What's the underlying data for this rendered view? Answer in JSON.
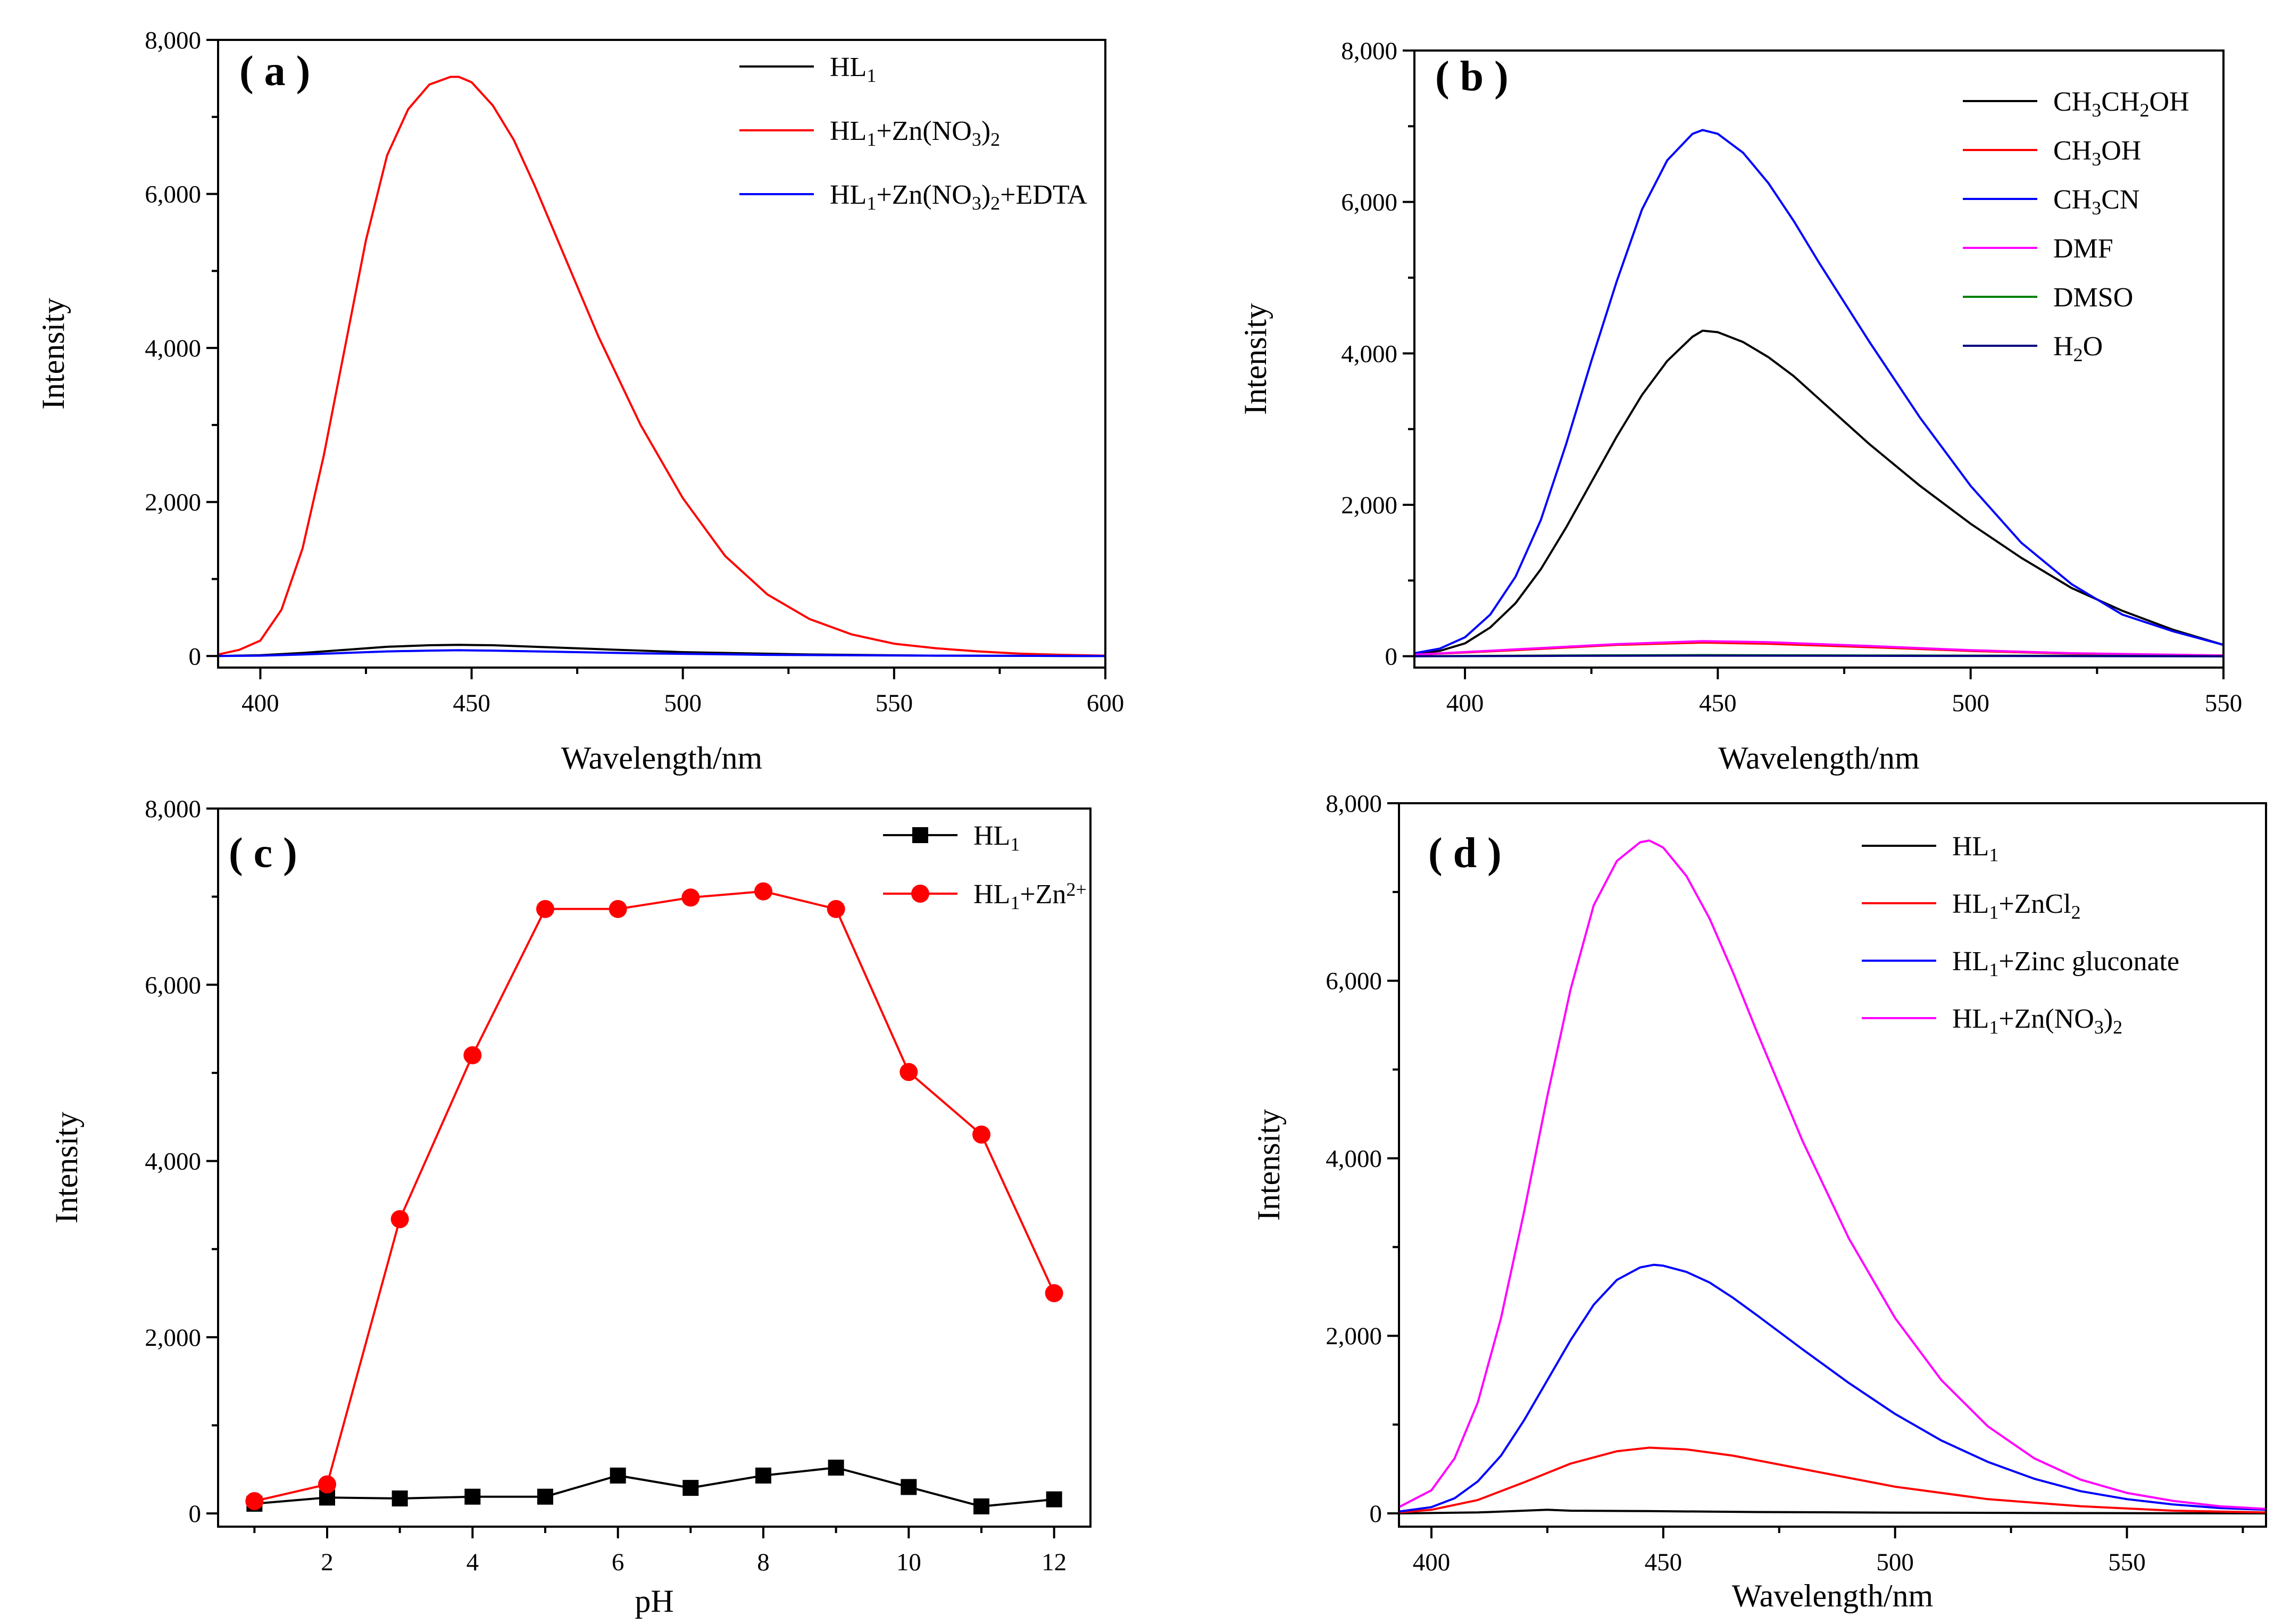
{
  "chart_data": [
    {
      "id": "a",
      "type": "line",
      "panel_label": "( a )",
      "xlabel": "Wavelength/nm",
      "ylabel": "Intensity",
      "xlim": [
        390,
        600
      ],
      "ylim": [
        -150,
        8000
      ],
      "xticks": [
        400,
        450,
        500,
        550,
        600
      ],
      "xtick_labels": [
        "400",
        "450",
        "500",
        "550",
        "600"
      ],
      "yticks": [
        0,
        2000,
        4000,
        6000,
        8000
      ],
      "ytick_labels": [
        "0",
        "2,000",
        "4,000",
        "6,000",
        "8,000"
      ],
      "legend_position": "top-right",
      "series": [
        {
          "name": "HL1",
          "legend": [
            [
              "HL",
              ""
            ],
            [
              "1",
              "sub"
            ]
          ],
          "color": "#000000",
          "x": [
            390,
            400,
            410,
            420,
            430,
            440,
            447,
            455,
            465,
            480,
            500,
            530,
            560,
            600
          ],
          "y": [
            0,
            10,
            40,
            80,
            120,
            140,
            145,
            140,
            120,
            90,
            50,
            20,
            5,
            0
          ]
        },
        {
          "name": "HL1+Zn(NO3)2",
          "legend": [
            [
              "HL",
              ""
            ],
            [
              "1",
              "sub"
            ],
            [
              "+Zn(NO",
              ""
            ],
            [
              "3",
              "sub"
            ],
            [
              ")",
              ""
            ],
            [
              "2",
              "sub"
            ]
          ],
          "color": "#ff0000",
          "x": [
            390,
            395,
            400,
            405,
            410,
            415,
            420,
            425,
            430,
            435,
            440,
            445,
            447,
            450,
            455,
            460,
            465,
            470,
            480,
            490,
            500,
            510,
            520,
            530,
            540,
            550,
            560,
            570,
            580,
            590,
            600
          ],
          "y": [
            20,
            80,
            200,
            600,
            1400,
            2600,
            4000,
            5400,
            6500,
            7100,
            7420,
            7520,
            7520,
            7450,
            7150,
            6700,
            6100,
            5450,
            4150,
            3000,
            2050,
            1300,
            800,
            480,
            280,
            160,
            100,
            60,
            30,
            15,
            5
          ]
        },
        {
          "name": "HL1+Zn(NO3)2+EDTA",
          "legend": [
            [
              "HL",
              ""
            ],
            [
              "1",
              "sub"
            ],
            [
              "+Zn(NO",
              ""
            ],
            [
              "3",
              "sub"
            ],
            [
              ")",
              ""
            ],
            [
              "2",
              "sub"
            ],
            [
              "+EDTA",
              ""
            ]
          ],
          "color": "#0000ff",
          "x": [
            390,
            400,
            410,
            420,
            430,
            440,
            447,
            455,
            470,
            490,
            520,
            560,
            600
          ],
          "y": [
            0,
            5,
            20,
            40,
            60,
            70,
            75,
            70,
            55,
            35,
            15,
            5,
            0
          ]
        }
      ]
    },
    {
      "id": "b",
      "type": "line",
      "panel_label": "( b )",
      "xlabel": "Wavelength/nm",
      "ylabel": "Intensity",
      "xlim": [
        390,
        550
      ],
      "ylim": [
        -150,
        8000
      ],
      "xticks": [
        400,
        450,
        500,
        550
      ],
      "xtick_labels": [
        "400",
        "450",
        "500",
        "550"
      ],
      "yticks": [
        0,
        2000,
        4000,
        6000,
        8000
      ],
      "ytick_labels": [
        "0",
        "2,000",
        "4,000",
        "6,000",
        "8,000"
      ],
      "legend_position": "top-right",
      "series": [
        {
          "name": "CH3CH2OH",
          "legend": [
            [
              "CH",
              ""
            ],
            [
              "3",
              "sub"
            ],
            [
              "CH",
              ""
            ],
            [
              "2",
              "sub"
            ],
            [
              "OH",
              ""
            ]
          ],
          "color": "#000000",
          "x": [
            390,
            395,
            400,
            405,
            410,
            415,
            420,
            425,
            430,
            435,
            440,
            445,
            447,
            450,
            455,
            460,
            465,
            470,
            480,
            490,
            500,
            510,
            520,
            530,
            540,
            550
          ],
          "y": [
            30,
            70,
            170,
            380,
            700,
            1150,
            1700,
            2300,
            2900,
            3450,
            3900,
            4220,
            4300,
            4280,
            4150,
            3950,
            3700,
            3400,
            2800,
            2250,
            1750,
            1300,
            900,
            600,
            350,
            150
          ]
        },
        {
          "name": "CH3OH",
          "legend": [
            [
              "CH",
              ""
            ],
            [
              "3",
              "sub"
            ],
            [
              "OH",
              ""
            ]
          ],
          "color": "#ff0000",
          "x": [
            390,
            410,
            430,
            447,
            460,
            480,
            500,
            520,
            550
          ],
          "y": [
            20,
            80,
            150,
            180,
            165,
            120,
            70,
            35,
            10
          ]
        },
        {
          "name": "CH3CN",
          "legend": [
            [
              "CH",
              ""
            ],
            [
              "3",
              "sub"
            ],
            [
              "CN",
              ""
            ]
          ],
          "color": "#0000ff",
          "x": [
            390,
            395,
            400,
            405,
            410,
            415,
            420,
            425,
            430,
            435,
            440,
            445,
            447,
            450,
            455,
            460,
            465,
            470,
            480,
            490,
            500,
            510,
            520,
            530,
            540,
            550
          ],
          "y": [
            40,
            100,
            250,
            550,
            1050,
            1800,
            2800,
            3900,
            4950,
            5900,
            6550,
            6900,
            6950,
            6900,
            6650,
            6250,
            5750,
            5200,
            4150,
            3150,
            2250,
            1500,
            950,
            550,
            330,
            150
          ]
        },
        {
          "name": "DMF",
          "legend": [
            [
              "DMF",
              ""
            ]
          ],
          "color": "#ff00ff",
          "x": [
            390,
            410,
            430,
            447,
            460,
            480,
            500,
            520,
            550
          ],
          "y": [
            20,
            90,
            160,
            200,
            185,
            135,
            80,
            40,
            10
          ]
        },
        {
          "name": "DMSO",
          "legend": [
            [
              "DMSO",
              ""
            ]
          ],
          "color": "#008000",
          "x": [
            390,
            420,
            447,
            480,
            520,
            550
          ],
          "y": [
            0,
            10,
            15,
            10,
            5,
            0
          ]
        },
        {
          "name": "H2O",
          "legend": [
            [
              "H",
              ""
            ],
            [
              "2",
              "sub"
            ],
            [
              "O",
              ""
            ]
          ],
          "color": "#000080",
          "x": [
            390,
            420,
            447,
            480,
            520,
            550
          ],
          "y": [
            0,
            5,
            8,
            5,
            2,
            0
          ]
        }
      ]
    },
    {
      "id": "c",
      "type": "line",
      "panel_label": "( c )",
      "xlabel": "pH",
      "ylabel": "Intensity",
      "xlim": [
        0.5,
        12.5
      ],
      "ylim": [
        -150,
        8000
      ],
      "xticks": [
        2,
        4,
        6,
        8,
        10,
        12
      ],
      "xtick_labels": [
        "2",
        "4",
        "6",
        "8",
        "10",
        "12"
      ],
      "yticks": [
        0,
        2000,
        4000,
        6000,
        8000
      ],
      "ytick_labels": [
        "0",
        "2,000",
        "4,000",
        "6,000",
        "8,000"
      ],
      "legend_position": "top-right",
      "series": [
        {
          "name": "HL1",
          "legend": [
            [
              "HL",
              ""
            ],
            [
              "1",
              "sub"
            ]
          ],
          "color": "#000000",
          "marker": "square",
          "x": [
            1,
            2,
            3,
            4,
            5,
            6,
            7,
            8,
            9,
            10,
            11,
            12
          ],
          "y": [
            110,
            180,
            170,
            190,
            190,
            430,
            290,
            430,
            520,
            300,
            80,
            160
          ]
        },
        {
          "name": "HL1+Zn2+",
          "legend": [
            [
              "HL",
              ""
            ],
            [
              "1",
              "sub"
            ],
            [
              "+Zn",
              ""
            ],
            [
              "2+",
              "sup"
            ]
          ],
          "color": "#ff0000",
          "marker": "circle",
          "x": [
            1,
            2,
            3,
            4,
            5,
            6,
            7,
            8,
            9,
            10,
            11,
            12
          ],
          "y": [
            140,
            330,
            3340,
            5200,
            6860,
            6860,
            6990,
            7060,
            6860,
            5010,
            4300,
            2500
          ]
        }
      ]
    },
    {
      "id": "d",
      "type": "line",
      "panel_label": "( d )",
      "xlabel": "Wavelength/nm",
      "ylabel": "Intensity",
      "xlim": [
        393,
        580
      ],
      "ylim": [
        -150,
        8000
      ],
      "xticks": [
        400,
        450,
        500,
        550
      ],
      "xtick_labels": [
        "400",
        "450",
        "500",
        "550"
      ],
      "yticks": [
        0,
        2000,
        4000,
        6000,
        8000
      ],
      "ytick_labels": [
        "0",
        "2,000",
        "4,000",
        "6,000",
        "8,000"
      ],
      "legend_position": "top-right",
      "series": [
        {
          "name": "HL1",
          "legend": [
            [
              "HL",
              ""
            ],
            [
              "1",
              "sub"
            ]
          ],
          "color": "#000000",
          "x": [
            393,
            410,
            425,
            430,
            447,
            470,
            500,
            540,
            580
          ],
          "y": [
            0,
            10,
            40,
            30,
            25,
            15,
            8,
            3,
            0
          ]
        },
        {
          "name": "HL1+ZnCl2",
          "legend": [
            [
              "HL",
              ""
            ],
            [
              "1",
              "sub"
            ],
            [
              "+ZnCl",
              ""
            ],
            [
              "2",
              "sub"
            ]
          ],
          "color": "#ff0000",
          "x": [
            393,
            400,
            410,
            420,
            430,
            440,
            447,
            455,
            465,
            480,
            500,
            520,
            540,
            560,
            580
          ],
          "y": [
            10,
            40,
            150,
            350,
            560,
            700,
            740,
            720,
            650,
            500,
            300,
            160,
            80,
            30,
            10
          ]
        },
        {
          "name": "HL1+Zinc gluconate",
          "legend": [
            [
              "HL",
              ""
            ],
            [
              "1",
              "sub"
            ],
            [
              "+Zinc gluconate",
              ""
            ]
          ],
          "color": "#0000ff",
          "x": [
            393,
            400,
            405,
            410,
            415,
            420,
            425,
            430,
            435,
            440,
            445,
            448,
            450,
            455,
            460,
            465,
            470,
            480,
            490,
            500,
            510,
            520,
            530,
            540,
            550,
            560,
            570,
            580
          ],
          "y": [
            20,
            70,
            170,
            360,
            650,
            1050,
            1500,
            1950,
            2350,
            2630,
            2770,
            2800,
            2790,
            2720,
            2600,
            2430,
            2240,
            1850,
            1470,
            1120,
            820,
            580,
            390,
            250,
            160,
            100,
            60,
            40
          ]
        },
        {
          "name": "HL1+Zn(NO3)2",
          "legend": [
            [
              "HL",
              ""
            ],
            [
              "1",
              "sub"
            ],
            [
              "+Zn(NO",
              ""
            ],
            [
              "3",
              "sub"
            ],
            [
              ")",
              ""
            ],
            [
              "2",
              "sub"
            ]
          ],
          "color": "#ff00ff",
          "x": [
            393,
            400,
            405,
            410,
            415,
            420,
            425,
            430,
            435,
            440,
            445,
            447,
            450,
            455,
            460,
            465,
            470,
            480,
            490,
            500,
            510,
            520,
            530,
            540,
            550,
            560,
            570,
            580
          ],
          "y": [
            70,
            260,
            620,
            1250,
            2200,
            3400,
            4700,
            5900,
            6850,
            7350,
            7560,
            7580,
            7500,
            7180,
            6700,
            6100,
            5450,
            4200,
            3100,
            2200,
            1500,
            980,
            620,
            380,
            230,
            140,
            80,
            50
          ]
        }
      ]
    }
  ]
}
